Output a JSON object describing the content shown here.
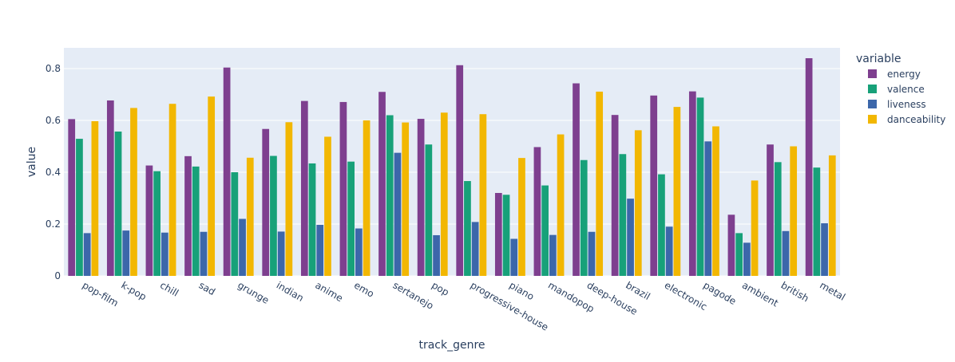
{
  "chart_data": {
    "type": "bar",
    "xlabel": "track_genre",
    "ylabel": "value",
    "ylim": [
      0,
      0.88
    ],
    "y_ticks": [
      0,
      0.2,
      0.4,
      0.6,
      0.8
    ],
    "y_tick_labels": [
      "0",
      "0.2",
      "0.4",
      "0.6",
      "0.8"
    ],
    "grid": true,
    "legend_title": "variable",
    "legend_position": "right",
    "categories": [
      "pop-film",
      "k-pop",
      "chill",
      "sad",
      "grunge",
      "indian",
      "anime",
      "emo",
      "sertanejo",
      "pop",
      "progressive-house",
      "piano",
      "mandopop",
      "deep-house",
      "brazil",
      "electronic",
      "pagode",
      "ambient",
      "british",
      "metal"
    ],
    "series": [
      {
        "name": "energy",
        "color": "#7e3f8f",
        "values": [
          0.605,
          0.677,
          0.426,
          0.462,
          0.804,
          0.567,
          0.675,
          0.671,
          0.71,
          0.606,
          0.813,
          0.32,
          0.497,
          0.743,
          0.621,
          0.696,
          0.712,
          0.236,
          0.507,
          0.84
        ]
      },
      {
        "name": "valence",
        "color": "#17a179",
        "values": [
          0.529,
          0.557,
          0.404,
          0.422,
          0.4,
          0.463,
          0.434,
          0.441,
          0.62,
          0.507,
          0.366,
          0.313,
          0.349,
          0.447,
          0.47,
          0.392,
          0.688,
          0.165,
          0.439,
          0.418
        ]
      },
      {
        "name": "liveness",
        "color": "#3c67aa",
        "values": [
          0.165,
          0.175,
          0.167,
          0.17,
          0.22,
          0.171,
          0.197,
          0.183,
          0.475,
          0.157,
          0.208,
          0.143,
          0.158,
          0.17,
          0.298,
          0.19,
          0.519,
          0.128,
          0.173,
          0.203
        ]
      },
      {
        "name": "danceability",
        "color": "#f2b702",
        "values": [
          0.597,
          0.648,
          0.664,
          0.692,
          0.456,
          0.593,
          0.537,
          0.6,
          0.592,
          0.63,
          0.624,
          0.455,
          0.546,
          0.711,
          0.562,
          0.652,
          0.577,
          0.368,
          0.5,
          0.465
        ]
      }
    ]
  }
}
